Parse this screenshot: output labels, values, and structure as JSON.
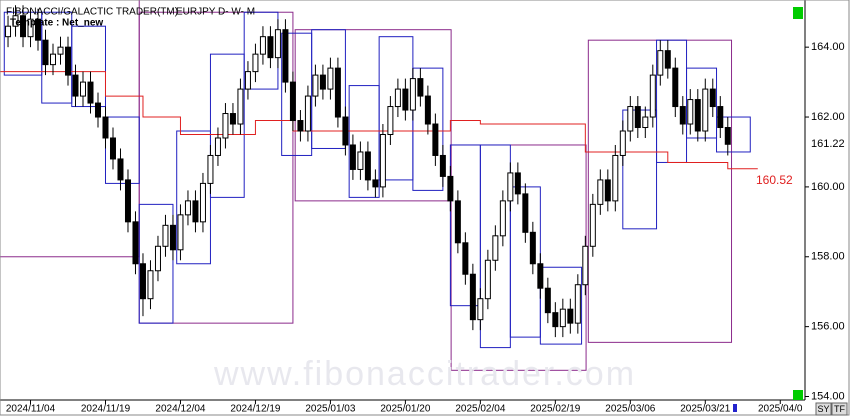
{
  "header": {
    "title": "FIBONACCI/GALACTIC TRADER(TM)",
    "symbol": "EURJPY D- W- M",
    "template": "Template : Net_new"
  },
  "watermark": "www.fibonaccitrader.com",
  "buttons": [
    "SY",
    "TF"
  ],
  "chart_data": {
    "type": "candlestick",
    "x": [
      0,
      1,
      2,
      3,
      4,
      5,
      6,
      7,
      8,
      9,
      10,
      11,
      12,
      13,
      14,
      15,
      16,
      17,
      18,
      19,
      20,
      21,
      22,
      23,
      24,
      25,
      26,
      27,
      28,
      29,
      30,
      31,
      32,
      33,
      34,
      35,
      36,
      37,
      38,
      39,
      40,
      41,
      42,
      43,
      44,
      45,
      46,
      47,
      48,
      49,
      50,
      51,
      52,
      53,
      54,
      55,
      56,
      57,
      58,
      59,
      60,
      61,
      62,
      63,
      64,
      65,
      66,
      67,
      68,
      69,
      70,
      71,
      72,
      73,
      74,
      75,
      76,
      77,
      78,
      79,
      80,
      81,
      82,
      83,
      84,
      85,
      86,
      87,
      88,
      89,
      90,
      91,
      92,
      93,
      94,
      95,
      96
    ],
    "ohlc": [
      [
        164.3,
        164.9,
        164.0,
        164.6
      ],
      [
        164.6,
        165.2,
        164.3,
        164.9
      ],
      [
        164.9,
        165.2,
        164.0,
        164.3
      ],
      [
        164.3,
        165.1,
        164.0,
        164.8
      ],
      [
        164.8,
        165.1,
        163.9,
        164.2
      ],
      [
        164.2,
        164.5,
        163.2,
        163.5
      ],
      [
        163.5,
        164.1,
        163.2,
        163.8
      ],
      [
        163.8,
        164.3,
        163.5,
        164.0
      ],
      [
        164.0,
        164.3,
        162.9,
        163.2
      ],
      [
        163.2,
        163.5,
        162.3,
        162.6
      ],
      [
        162.6,
        163.3,
        162.3,
        163.0
      ],
      [
        163.0,
        163.3,
        162.1,
        162.4
      ],
      [
        162.4,
        162.7,
        161.7,
        162.0
      ],
      [
        162.0,
        162.3,
        161.1,
        161.4
      ],
      [
        161.4,
        161.7,
        160.5,
        160.8
      ],
      [
        160.8,
        161.1,
        159.9,
        160.2
      ],
      [
        160.2,
        160.5,
        158.7,
        159.0
      ],
      [
        159.0,
        159.3,
        157.5,
        157.8
      ],
      [
        157.8,
        158.1,
        156.3,
        156.8
      ],
      [
        156.8,
        157.9,
        156.5,
        157.6
      ],
      [
        157.6,
        158.6,
        157.3,
        158.3
      ],
      [
        158.3,
        159.2,
        158.0,
        158.9
      ],
      [
        158.9,
        159.2,
        157.9,
        158.2
      ],
      [
        158.2,
        159.5,
        157.9,
        159.2
      ],
      [
        159.2,
        159.9,
        158.9,
        159.6
      ],
      [
        159.6,
        159.9,
        158.7,
        159.0
      ],
      [
        159.0,
        160.4,
        158.7,
        160.1
      ],
      [
        160.1,
        161.2,
        159.8,
        160.9
      ],
      [
        160.9,
        161.7,
        160.6,
        161.4
      ],
      [
        161.4,
        162.4,
        161.1,
        162.1
      ],
      [
        162.1,
        162.4,
        161.5,
        161.8
      ],
      [
        161.8,
        163.1,
        161.5,
        162.8
      ],
      [
        162.8,
        163.6,
        162.5,
        163.3
      ],
      [
        163.3,
        164.1,
        163.0,
        163.8
      ],
      [
        163.8,
        164.6,
        163.5,
        164.3
      ],
      [
        164.3,
        164.6,
        163.4,
        163.7
      ],
      [
        163.7,
        164.8,
        163.4,
        164.5
      ],
      [
        164.5,
        164.8,
        162.7,
        163.0
      ],
      [
        163.0,
        163.3,
        161.6,
        161.9
      ],
      [
        161.9,
        162.2,
        161.3,
        161.6
      ],
      [
        161.6,
        162.9,
        161.3,
        162.6
      ],
      [
        162.6,
        163.5,
        162.3,
        163.2
      ],
      [
        163.2,
        163.5,
        162.5,
        162.8
      ],
      [
        162.8,
        163.7,
        162.5,
        163.4
      ],
      [
        163.4,
        163.7,
        161.7,
        162.0
      ],
      [
        162.0,
        162.3,
        160.9,
        161.2
      ],
      [
        161.2,
        161.5,
        160.2,
        160.5
      ],
      [
        160.5,
        161.3,
        160.2,
        161.0
      ],
      [
        161.0,
        161.3,
        159.9,
        160.2
      ],
      [
        160.2,
        160.5,
        159.7,
        160.0
      ],
      [
        160.0,
        161.8,
        159.7,
        161.5
      ],
      [
        161.5,
        162.6,
        161.2,
        162.3
      ],
      [
        162.3,
        163.1,
        162.0,
        162.8
      ],
      [
        162.8,
        163.1,
        161.9,
        162.2
      ],
      [
        162.2,
        163.4,
        161.9,
        163.1
      ],
      [
        163.1,
        163.4,
        162.3,
        162.6
      ],
      [
        162.6,
        162.9,
        161.5,
        161.8
      ],
      [
        161.8,
        162.1,
        160.6,
        160.9
      ],
      [
        160.9,
        161.2,
        160.0,
        160.3
      ],
      [
        160.3,
        160.6,
        159.3,
        159.6
      ],
      [
        159.6,
        159.9,
        158.1,
        158.4
      ],
      [
        158.4,
        158.7,
        157.2,
        157.5
      ],
      [
        157.5,
        157.8,
        155.9,
        156.2
      ],
      [
        156.2,
        157.1,
        155.9,
        156.8
      ],
      [
        156.8,
        158.2,
        156.5,
        157.9
      ],
      [
        157.9,
        158.9,
        157.6,
        158.6
      ],
      [
        158.6,
        159.9,
        158.3,
        159.6
      ],
      [
        159.6,
        160.7,
        159.3,
        160.4
      ],
      [
        160.4,
        160.7,
        159.5,
        159.8
      ],
      [
        159.8,
        160.1,
        158.4,
        158.7
      ],
      [
        158.7,
        159.0,
        157.5,
        157.8
      ],
      [
        157.8,
        158.1,
        156.8,
        157.1
      ],
      [
        157.1,
        157.4,
        156.1,
        156.4
      ],
      [
        156.4,
        156.7,
        155.7,
        156.0
      ],
      [
        156.0,
        156.8,
        155.7,
        156.5
      ],
      [
        156.5,
        156.8,
        155.8,
        156.1
      ],
      [
        156.1,
        157.5,
        155.8,
        157.2
      ],
      [
        157.2,
        158.6,
        156.9,
        158.3
      ],
      [
        158.3,
        159.8,
        158.0,
        159.5
      ],
      [
        159.5,
        160.5,
        159.2,
        160.2
      ],
      [
        160.2,
        160.5,
        159.3,
        159.6
      ],
      [
        159.6,
        161.2,
        159.3,
        160.9
      ],
      [
        160.9,
        161.9,
        160.6,
        161.6
      ],
      [
        161.6,
        162.6,
        161.3,
        162.3
      ],
      [
        162.3,
        162.6,
        161.4,
        161.7
      ],
      [
        161.7,
        162.3,
        161.4,
        162.0
      ],
      [
        162.0,
        163.5,
        161.7,
        163.2
      ],
      [
        163.2,
        164.2,
        162.9,
        163.9
      ],
      [
        163.9,
        164.2,
        163.1,
        163.4
      ],
      [
        163.4,
        163.7,
        162.0,
        162.3
      ],
      [
        162.3,
        162.6,
        161.5,
        161.8
      ],
      [
        161.8,
        162.8,
        161.5,
        162.5
      ],
      [
        162.5,
        162.8,
        161.3,
        161.6
      ],
      [
        161.6,
        163.1,
        161.3,
        162.8
      ],
      [
        162.8,
        163.1,
        162.0,
        162.3
      ],
      [
        162.3,
        162.6,
        161.4,
        161.7
      ],
      [
        161.7,
        162.0,
        160.9,
        161.22
      ]
    ],
    "xlim": [
      -1.07,
      106.3
    ],
    "xticks": [
      {
        "value": 3,
        "label": "2024/11/04"
      },
      {
        "value": 13,
        "label": "2024/11/19"
      },
      {
        "value": 23,
        "label": "2024/12/04"
      },
      {
        "value": 33,
        "label": "2024/12/19"
      },
      {
        "value": 43,
        "label": "2025/01/03"
      },
      {
        "value": 53,
        "label": "2025/01/20"
      },
      {
        "value": 63,
        "label": "2025/02/04"
      },
      {
        "value": 73,
        "label": "2025/02/19"
      },
      {
        "value": 83,
        "label": "2025/03/06"
      },
      {
        "value": 93,
        "label": "2025/03/21"
      },
      {
        "value": 103,
        "label": "2025/04/0"
      }
    ],
    "ylim": [
      153.9,
      165.35
    ],
    "yticks": [
      {
        "value": 154,
        "label": "154.00"
      },
      {
        "value": 156,
        "label": "156.00"
      },
      {
        "value": 158,
        "label": "158.00"
      },
      {
        "value": 160,
        "label": "160.00"
      },
      {
        "value": 162,
        "label": "162.00"
      },
      {
        "value": 164,
        "label": "164.00"
      }
    ],
    "last_price": 161.22,
    "projection": {
      "value": 160.52,
      "label": "160.52",
      "color": "#e02020"
    },
    "level_line": {
      "color": "#e02020",
      "x": [
        -1.07,
        13,
        13,
        18,
        18,
        23,
        23,
        33,
        33,
        38,
        38,
        59,
        59,
        63,
        63,
        77,
        77,
        88,
        88,
        96,
        96,
        100
      ],
      "values": [
        163.3,
        163.3,
        162.6,
        162.6,
        162.0,
        162.0,
        161.5,
        161.5,
        161.9,
        161.9,
        161.6,
        161.6,
        161.9,
        161.9,
        161.8,
        161.8,
        161.0,
        161.0,
        160.7,
        160.7,
        160.52,
        160.52
      ]
    },
    "weekly_boxes": {
      "color": "#2020c0",
      "boxes": [
        [
          -0.5,
          4.5,
          163.2,
          165.0
        ],
        [
          4.5,
          8.5,
          162.4,
          165.0
        ],
        [
          8.5,
          13,
          162.3,
          164.6
        ],
        [
          13,
          17.5,
          160.1,
          162.0
        ],
        [
          17.5,
          22,
          156.1,
          159.5
        ],
        [
          22.5,
          27,
          157.8,
          161.6
        ],
        [
          27,
          31.5,
          159.7,
          163.8
        ],
        [
          31.5,
          36,
          162.8,
          165.0
        ],
        [
          36.5,
          40.5,
          160.9,
          164.4
        ],
        [
          40.5,
          45,
          161.1,
          164.5
        ],
        [
          45.5,
          49.5,
          159.7,
          162.9
        ],
        [
          49.5,
          54,
          160.2,
          164.3
        ],
        [
          54,
          58,
          159.9,
          163.4
        ],
        [
          59,
          63,
          156.6,
          161.2
        ],
        [
          63,
          67,
          155.4,
          161.2
        ],
        [
          67,
          71,
          155.7,
          160.0
        ],
        [
          71,
          76.5,
          155.5,
          157.7
        ],
        [
          82,
          86.5,
          158.8,
          162.2
        ],
        [
          86.5,
          90.5,
          160.7,
          164.2
        ],
        [
          90.5,
          94.5,
          161.4,
          163.4
        ],
        [
          94.5,
          99,
          161.0,
          162.0
        ]
      ]
    },
    "monthly_boxes": {
      "color": "#8b2a8b",
      "boxes": [
        [
          -1.07,
          17.5,
          158.0,
          165.35
        ],
        [
          17.5,
          38,
          156.1,
          165.0
        ],
        [
          38.3,
          59.1,
          159.6,
          164.5
        ],
        [
          59.1,
          77.1,
          154.75,
          161.2
        ],
        [
          77.4,
          96.5,
          155.55,
          164.2
        ]
      ]
    }
  }
}
